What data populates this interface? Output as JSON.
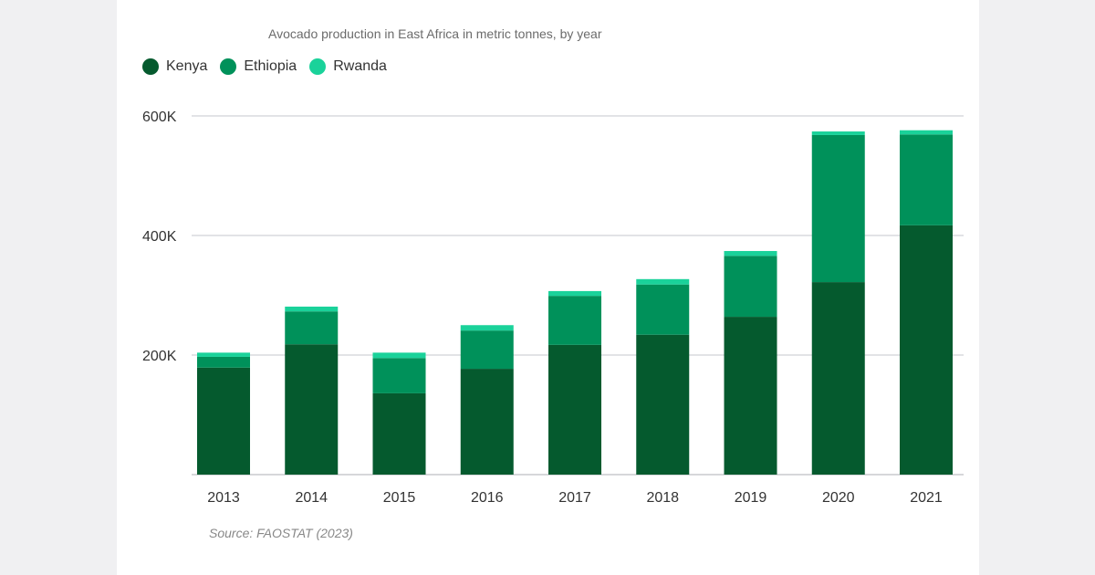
{
  "chart_data": {
    "type": "bar",
    "stacked": true,
    "title": "Avocado production in East Africa in metric tonnes, by year",
    "categories": [
      "2013",
      "2014",
      "2015",
      "2016",
      "2017",
      "2018",
      "2019",
      "2020",
      "2021"
    ],
    "series": [
      {
        "name": "Kenya",
        "color": "#055a2e",
        "values": [
          179000,
          218000,
          136000,
          177000,
          217000,
          234000,
          264000,
          322000,
          417000
        ]
      },
      {
        "name": "Ethiopia",
        "color": "#00915a",
        "values": [
          18000,
          55000,
          59000,
          64000,
          82000,
          84000,
          102000,
          246000,
          152000
        ]
      },
      {
        "name": "Rwanda",
        "color": "#1ad29a",
        "values": [
          7000,
          8000,
          9000,
          9000,
          8000,
          9000,
          8000,
          6000,
          7000
        ]
      }
    ],
    "yticks": [
      {
        "value": 200000,
        "label": "200K"
      },
      {
        "value": 400000,
        "label": "400K"
      },
      {
        "value": 600000,
        "label": "600K"
      }
    ],
    "ylim": [
      0,
      600000
    ],
    "xlabel": "",
    "ylabel": "",
    "legend_position": "top-left",
    "grid": true,
    "source": "Source: FAOSTAT (2023)"
  }
}
